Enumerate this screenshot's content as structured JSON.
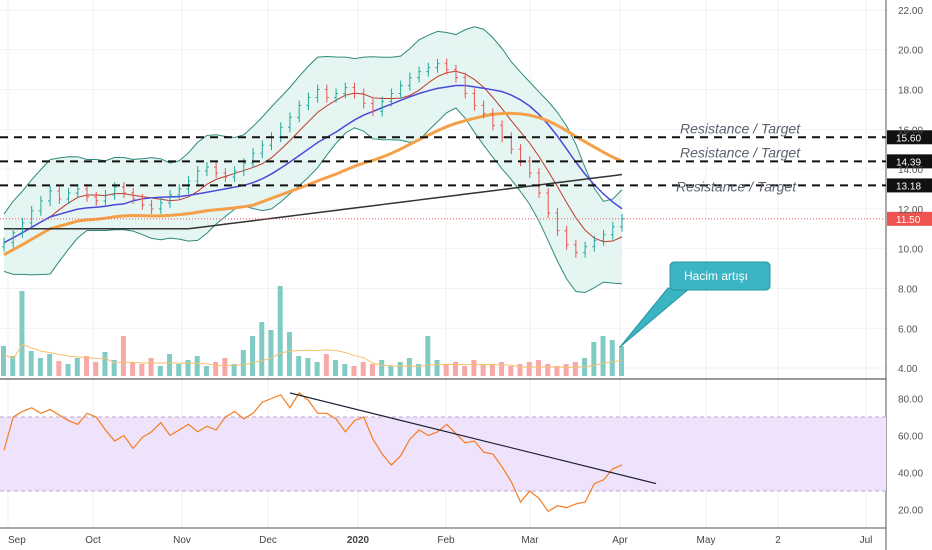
{
  "chart_data": {
    "type": "candlestick",
    "price_axis": {
      "ylim": [
        3.5,
        22.5
      ],
      "ticks": [
        "22.00",
        "20.00",
        "18.00",
        "16.00",
        "14.00",
        "12.00",
        "10.00",
        "8.00",
        "6.00",
        "4.00"
      ],
      "tick_values": [
        22,
        20,
        18,
        16,
        14,
        12,
        10,
        8,
        6,
        4
      ]
    },
    "rsi_axis": {
      "ylim": [
        10,
        90
      ],
      "ticks": [
        "80.00",
        "60.00",
        "40.00",
        "20.00"
      ],
      "tick_values": [
        80,
        60,
        40,
        20
      ],
      "band": [
        30,
        70
      ]
    },
    "time_axis": {
      "labels": [
        "Sep",
        "Oct",
        "Nov",
        "Dec",
        "2020",
        "Feb",
        "Mar",
        "Apr",
        "May",
        "2",
        "Jul"
      ],
      "bold_labels": [
        "2020"
      ]
    },
    "levels": [
      {
        "value": 15.6,
        "label": "15.60",
        "text": "Resistance / Target"
      },
      {
        "value": 14.39,
        "label": "14.39",
        "text": "Resistance / Target"
      },
      {
        "value": 13.18,
        "label": "13.18",
        "text": "Resistance / Target"
      }
    ],
    "last_price": {
      "value": 11.5,
      "label": "11.50"
    },
    "callout": {
      "text": "Hacim artışı"
    },
    "colors": {
      "up": "#26a69a",
      "down": "#ef5350",
      "ma_blue": "#4a4ad8",
      "ma_orange": "#f5a048",
      "ma_black": "#333333",
      "bollinger": "#2e8b7a",
      "bollinger_fill": "#dff3f0",
      "rsi_line": "#f57c20",
      "rsi_band": "#efe3fb",
      "callout": "#3bb5c4",
      "last_price": "#ef5350"
    },
    "close_series": {
      "description_units": "price",
      "values": [
        10.3,
        10.8,
        11.3,
        11.9,
        12.4,
        12.9,
        12.5,
        12.8,
        13.0,
        12.6,
        12.4,
        12.7,
        13.1,
        12.8,
        12.5,
        12.2,
        12.0,
        12.3,
        12.7,
        13.0,
        13.4,
        13.9,
        14.1,
        13.8,
        13.6,
        13.9,
        14.3,
        14.8,
        15.2,
        15.6,
        16.1,
        16.6,
        17.2,
        17.6,
        18.0,
        17.6,
        17.8,
        18.1,
        17.8,
        17.3,
        16.9,
        17.4,
        17.8,
        18.2,
        18.6,
        18.9,
        19.1,
        19.3,
        19.0,
        18.6,
        17.8,
        17.2,
        16.8,
        16.2,
        15.6,
        15.0,
        14.4,
        13.8,
        12.8,
        11.8,
        10.9,
        10.2,
        9.8,
        10.1,
        10.4,
        10.7,
        11.1,
        11.5
      ]
    },
    "rsi_series": {
      "values": [
        52,
        70,
        73,
        75,
        72,
        74,
        71,
        68,
        66,
        72,
        70,
        63,
        57,
        60,
        53,
        59,
        62,
        67,
        60,
        63,
        66,
        62,
        65,
        63,
        70,
        73,
        69,
        72,
        78,
        80,
        82,
        75,
        83,
        79,
        72,
        72,
        69,
        62,
        68,
        70,
        58,
        50,
        44,
        49,
        58,
        63,
        60,
        62,
        66,
        61,
        56,
        57,
        51,
        50,
        43,
        35,
        24,
        30,
        26,
        19,
        22,
        21,
        23,
        24,
        34,
        36,
        42,
        44
      ]
    }
  }
}
